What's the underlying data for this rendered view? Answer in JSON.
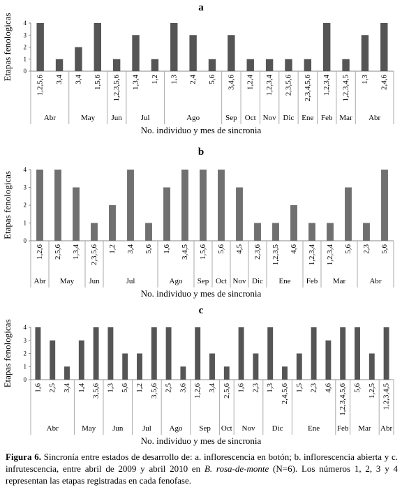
{
  "chart_data": [
    {
      "type": "bar",
      "title": "a",
      "ylabel": "Etapas fenologicas",
      "xlabel": "No. individuo y mes de sincronia",
      "ylim": [
        0,
        4
      ],
      "yticks": [
        0,
        1,
        2,
        3,
        4
      ],
      "bar_color": "#555555",
      "categories": [
        "1,2,5,6",
        "3,4",
        "3,4",
        "1,5,6",
        "1,2,3,5,6",
        "1,3,4",
        "1,2",
        "1,3",
        "2,4",
        "5,6",
        "3,4,6",
        "1,2,4",
        "1,2,3,4",
        "2,3,5,6",
        "2,3,4,5,6",
        "1,2,3,4",
        "1,2,3,4,5",
        "1,3",
        "2,4,6"
      ],
      "values": [
        4,
        1,
        2,
        4,
        1,
        3,
        1,
        4,
        3,
        1,
        3,
        1,
        1,
        1,
        1,
        4,
        1,
        3,
        4
      ],
      "months": [
        {
          "label": "Abr",
          "start": 0,
          "end": 2
        },
        {
          "label": "May",
          "start": 2,
          "end": 4
        },
        {
          "label": "Jun",
          "start": 4,
          "end": 5
        },
        {
          "label": "Jul",
          "start": 5,
          "end": 7
        },
        {
          "label": "Ago",
          "start": 7,
          "end": 10
        },
        {
          "label": "Sep",
          "start": 10,
          "end": 11
        },
        {
          "label": "Oct",
          "start": 11,
          "end": 12
        },
        {
          "label": "Nov",
          "start": 12,
          "end": 13
        },
        {
          "label": "Dic",
          "start": 13,
          "end": 14
        },
        {
          "label": "Ene",
          "start": 14,
          "end": 15
        },
        {
          "label": "Feb",
          "start": 15,
          "end": 16
        },
        {
          "label": "Mar",
          "start": 16,
          "end": 17
        },
        {
          "label": "Abr",
          "start": 17,
          "end": 19
        }
      ]
    },
    {
      "type": "bar",
      "title": "b",
      "ylabel": "Etapas fenologicas",
      "xlabel": "No. individuo y mes de sincronia",
      "ylim": [
        0,
        4
      ],
      "yticks": [
        0,
        1,
        2,
        3,
        4
      ],
      "bar_color": "#707070",
      "categories": [
        "1,2,6",
        "2,5,6",
        "1,3,4",
        "2,3,5,6",
        "1,2",
        "3,4",
        "5,6",
        "1,6",
        "3,4,5",
        "1,5,6",
        "5,6",
        "4,5",
        "2,3,6",
        "1,2,3,5",
        "4,6",
        "1,2,3,4",
        "1,2,3,4",
        "5,6",
        "2,3",
        "5,6"
      ],
      "values": [
        4,
        4,
        3,
        1,
        2,
        4,
        1,
        3,
        4,
        4,
        4,
        3,
        1,
        1,
        2,
        1,
        1,
        3,
        1,
        4
      ],
      "months": [
        {
          "label": "Abr",
          "start": 0,
          "end": 1
        },
        {
          "label": "May",
          "start": 1,
          "end": 3
        },
        {
          "label": "Jun",
          "start": 3,
          "end": 4
        },
        {
          "label": "Jul",
          "start": 4,
          "end": 7
        },
        {
          "label": "Ago",
          "start": 7,
          "end": 9
        },
        {
          "label": "Sep",
          "start": 9,
          "end": 10
        },
        {
          "label": "Oct",
          "start": 10,
          "end": 11
        },
        {
          "label": "Nov",
          "start": 11,
          "end": 12
        },
        {
          "label": "Dic",
          "start": 12,
          "end": 13
        },
        {
          "label": "Ene",
          "start": 13,
          "end": 15
        },
        {
          "label": "Feb",
          "start": 15,
          "end": 16
        },
        {
          "label": "Mar",
          "start": 16,
          "end": 18
        },
        {
          "label": "Abr",
          "start": 18,
          "end": 20
        }
      ]
    },
    {
      "type": "bar",
      "title": "c",
      "ylabel": "Etapas fenologicas",
      "xlabel": "No. individuo y mes de sincronia",
      "ylim": [
        0,
        4
      ],
      "yticks": [
        0,
        1,
        2,
        3,
        4
      ],
      "bar_color": "#555555",
      "categories": [
        "1,6",
        "2,5",
        "3,4",
        "1,4",
        "3,5,6",
        "1,3",
        "5,6",
        "1,2",
        "3,5,6",
        "2,5",
        "3,6",
        "1,2,6",
        "3,4",
        "2,5,6",
        "1,6",
        "2,3",
        "1,3",
        "2,4,5,6",
        "1,5",
        "2,3",
        "4,6",
        "1,2,3,4,5,6",
        "5,6",
        "1,2,5",
        "1,2,3,4,5"
      ],
      "values": [
        4,
        3,
        1,
        3,
        4,
        4,
        2,
        2,
        4,
        4,
        1,
        4,
        2,
        1,
        4,
        2,
        4,
        1,
        2,
        4,
        3,
        4,
        4,
        2,
        4
      ],
      "months": [
        {
          "label": "Abr",
          "start": 0,
          "end": 3
        },
        {
          "label": "May",
          "start": 3,
          "end": 5
        },
        {
          "label": "Jun",
          "start": 5,
          "end": 7
        },
        {
          "label": "Jul",
          "start": 7,
          "end": 9
        },
        {
          "label": "Ago",
          "start": 9,
          "end": 11
        },
        {
          "label": "Sep",
          "start": 11,
          "end": 13
        },
        {
          "label": "Oct",
          "start": 13,
          "end": 14
        },
        {
          "label": "Nov",
          "start": 14,
          "end": 16
        },
        {
          "label": "Dic",
          "start": 16,
          "end": 18
        },
        {
          "label": "Ene",
          "start": 18,
          "end": 21
        },
        {
          "label": "Feb",
          "start": 21,
          "end": 22
        },
        {
          "label": "Mar",
          "start": 22,
          "end": 24
        },
        {
          "label": "Abr",
          "start": 24,
          "end": 25
        }
      ]
    }
  ],
  "caption": {
    "lead": "Figura 6.",
    "part1": " Sincronía entre estados de desarrollo de: a. inflorescencia en botón; b. inflorescencia abierta y c. infrutescencia, entre abril de 2009 y abril 2010 en ",
    "species": "B. rosa-de-monte",
    "part2": " (N=6). Los números 1, 2, 3 y 4 representan las etapas registradas en cada fenofase."
  }
}
